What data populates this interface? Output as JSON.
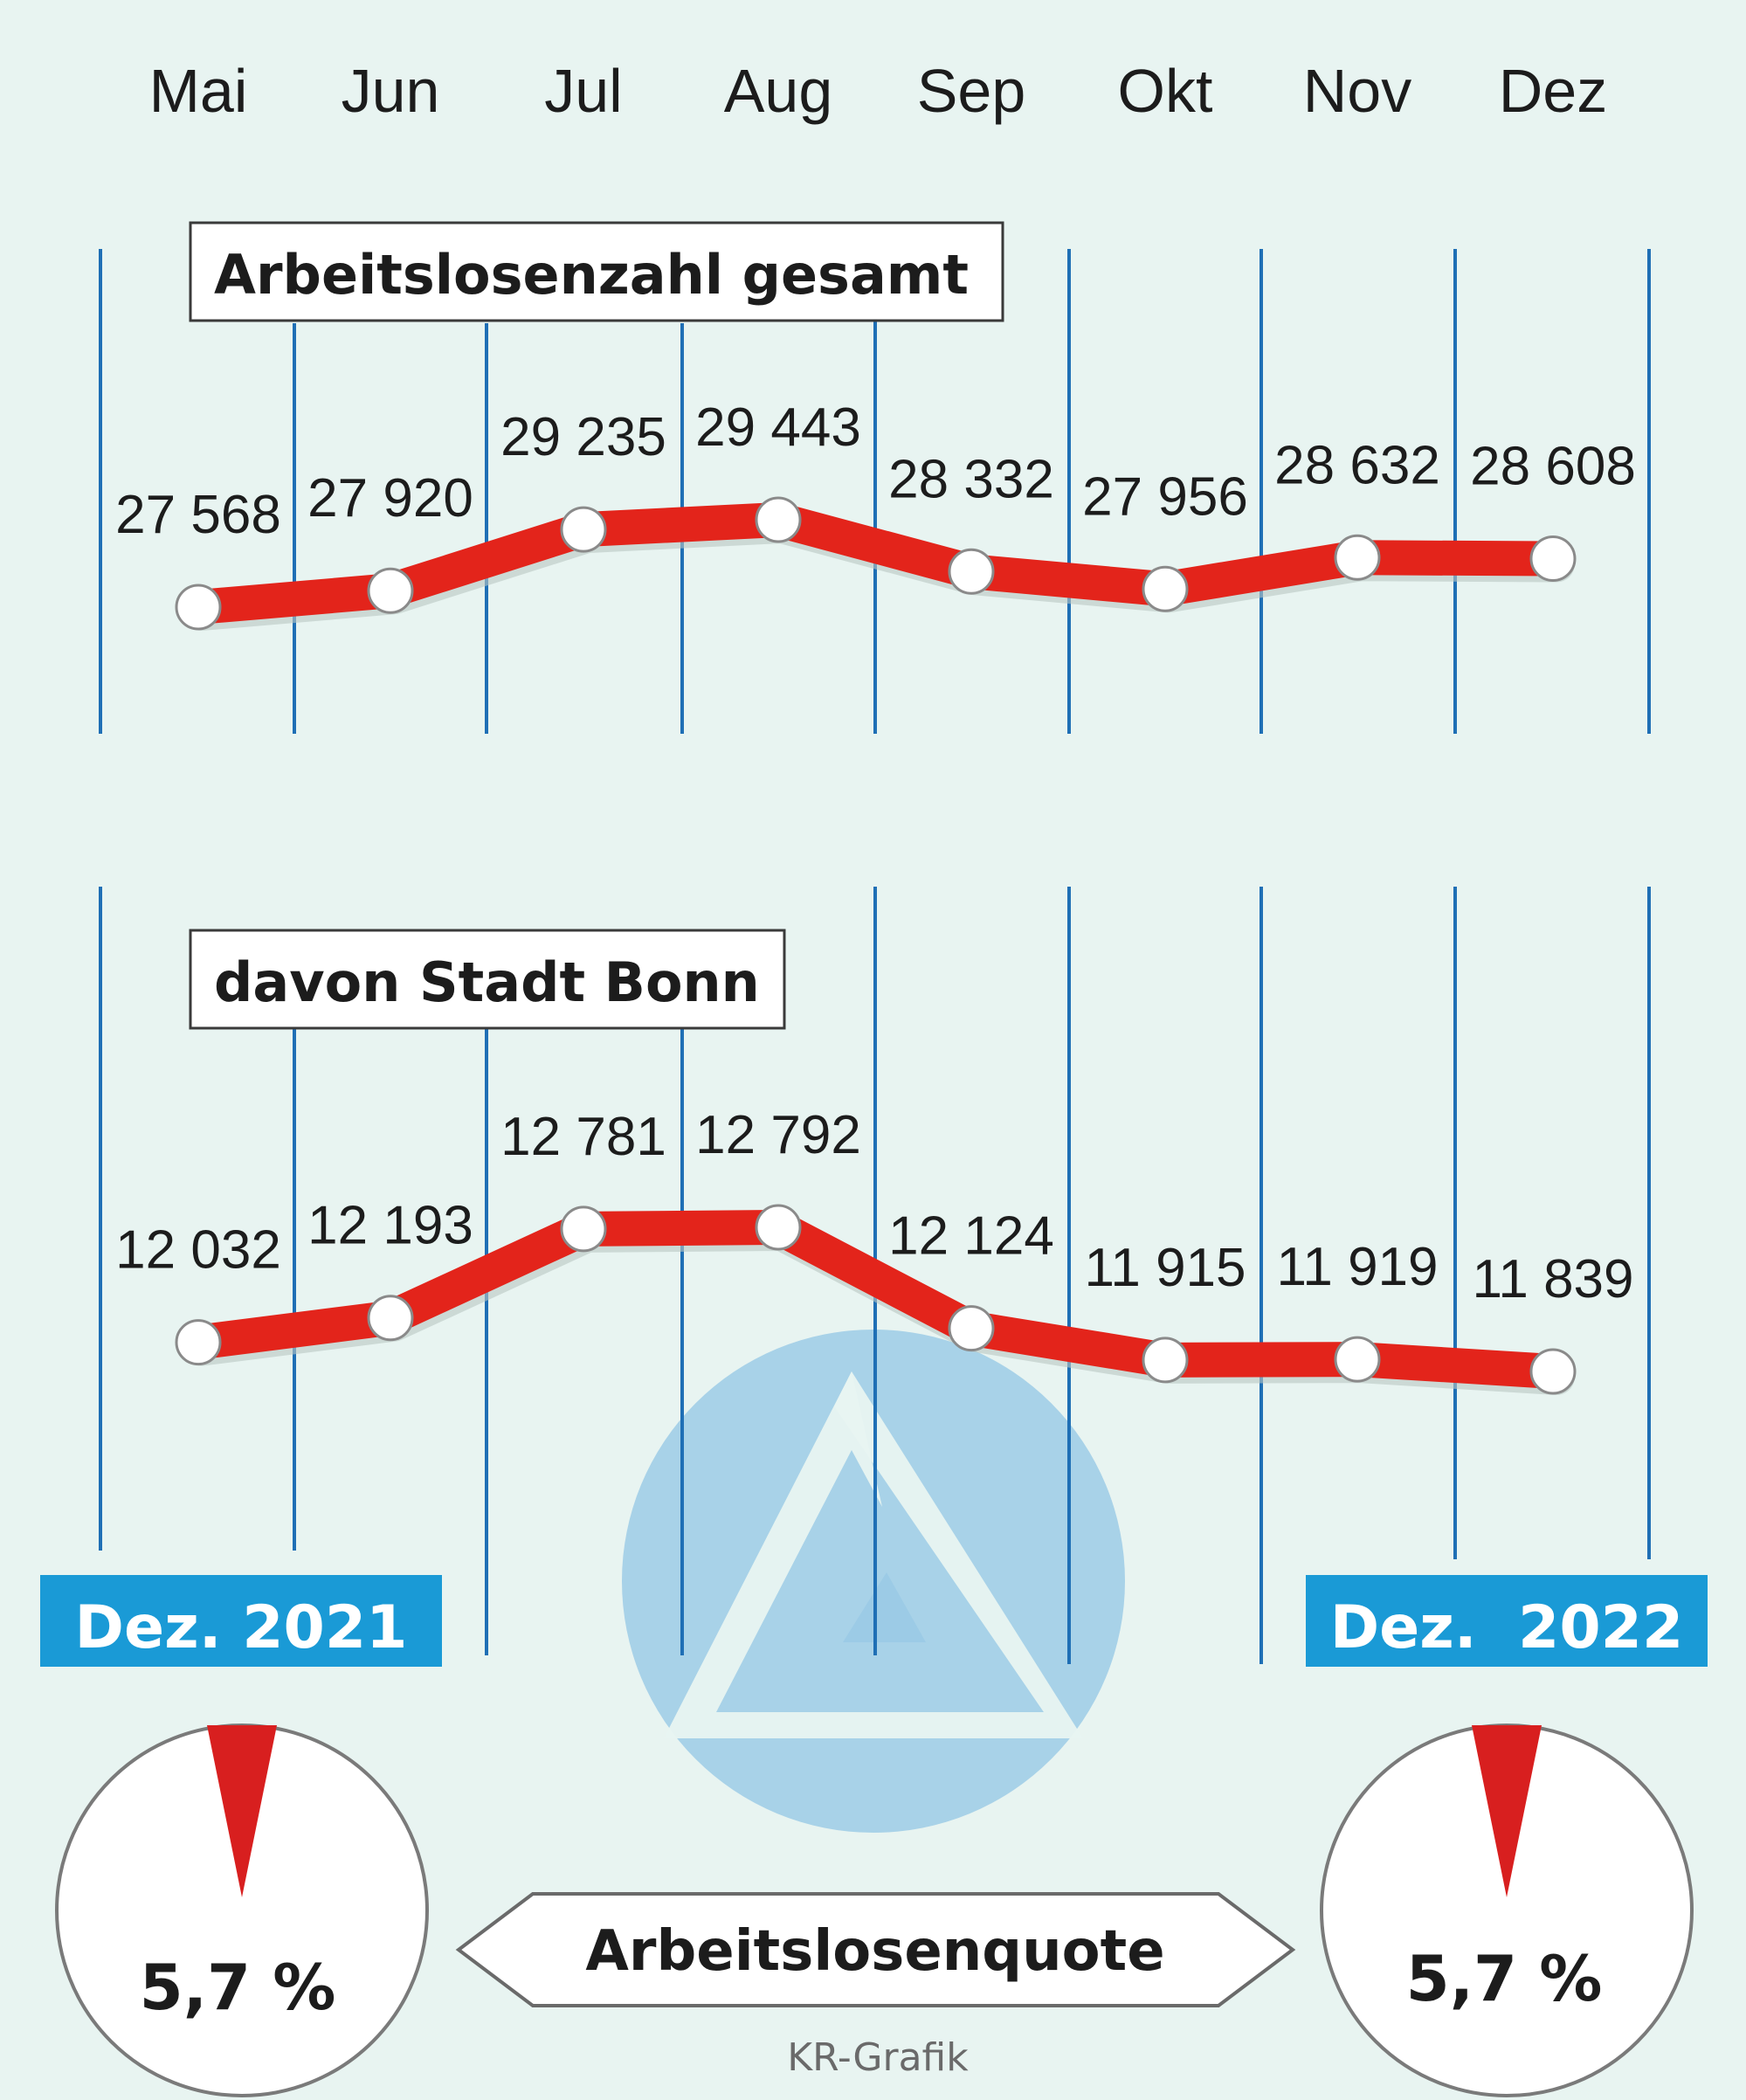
{
  "months": [
    "Mai",
    "Jun",
    "Jul",
    "Aug",
    "Sep",
    "Okt",
    "Nov",
    "Dez"
  ],
  "colors": {
    "background": "#e8f4f1",
    "line": "#e3241b",
    "gridline": "#1f6fb5",
    "datebox": "#1a9ad6",
    "logo": "#9ccbe6",
    "marker": "#ffffff"
  },
  "chart_data": [
    {
      "type": "line",
      "title": "Arbeitslosenzahl gesamt",
      "categories": [
        "Mai",
        "Jun",
        "Jul",
        "Aug",
        "Sep",
        "Okt",
        "Nov",
        "Dez"
      ],
      "values": [
        27568,
        27920,
        29235,
        29443,
        28332,
        27956,
        28632,
        28608
      ],
      "labels": [
        "27 568",
        "27 920",
        "29 235",
        "29 443",
        "28 332",
        "27 956",
        "28 632",
        "28 608"
      ]
    },
    {
      "type": "line",
      "title": "davon Stadt Bonn",
      "categories": [
        "Mai",
        "Jun",
        "Jul",
        "Aug",
        "Sep",
        "Okt",
        "Nov",
        "Dez"
      ],
      "values": [
        12032,
        12193,
        12781,
        12792,
        12124,
        11915,
        11919,
        11839
      ],
      "labels": [
        "12 032",
        "12 193",
        "12 781",
        "12 792",
        "12 124",
        "11 915",
        "11 919",
        "11 839"
      ]
    }
  ],
  "rate": {
    "label": "Arbeitslosenquote",
    "left": {
      "date": "Dez. 2021",
      "value_text": "5,7 %",
      "value": 5.7
    },
    "right": {
      "date": "Dez.  2022",
      "value_text": "5,7 %",
      "value": 5.7
    }
  },
  "credit": "KR-Grafik"
}
